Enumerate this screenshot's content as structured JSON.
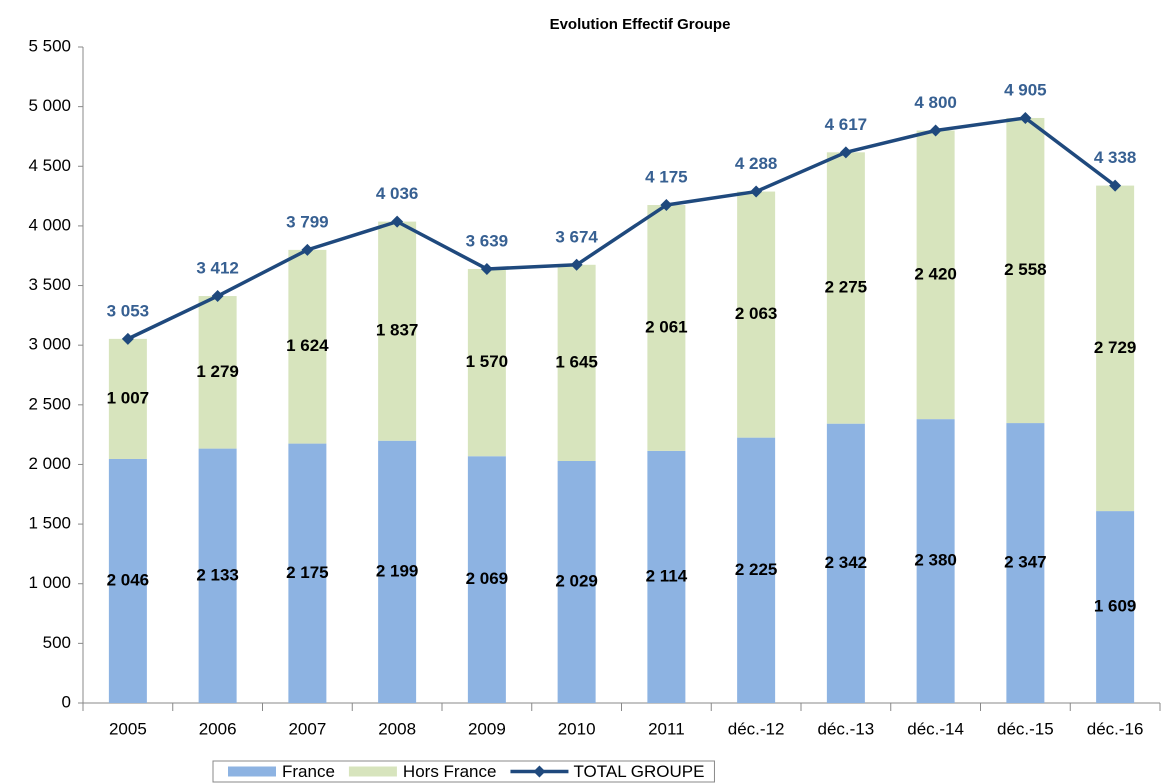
{
  "chart_data": {
    "type": "bar",
    "stacked": true,
    "title": "Evolution Effectif Groupe",
    "categories": [
      "2005",
      "2006",
      "2007",
      "2008",
      "2009",
      "2010",
      "2011",
      "déc.-12",
      "déc.-13",
      "déc.-14",
      "déc.-15",
      "déc.-16"
    ],
    "series": [
      {
        "name": "France",
        "color": "#8db3e2",
        "values": [
          2046,
          2133,
          2175,
          2199,
          2069,
          2029,
          2114,
          2225,
          2342,
          2380,
          2347,
          1609
        ],
        "value_labels": [
          "2 046",
          "2 133",
          "2 175",
          "2 199",
          "2 069",
          "2 029",
          "2 114",
          "2 225",
          "2 342",
          "2 380",
          "2 347",
          "1 609"
        ]
      },
      {
        "name": "Hors France",
        "color": "#d7e4bd",
        "values": [
          1007,
          1279,
          1624,
          1837,
          1570,
          1645,
          2061,
          2063,
          2275,
          2420,
          2558,
          2729
        ],
        "value_labels": [
          "1 007",
          "1 279",
          "1 624",
          "1 837",
          "1 570",
          "1 645",
          "2 061",
          "2 063",
          "2 275",
          "2 420",
          "2 558",
          "2 729"
        ]
      },
      {
        "name": "TOTAL GROUPE",
        "type": "line",
        "color": "#1f497d",
        "label_color": "#376092",
        "values": [
          3053,
          3412,
          3799,
          4036,
          3639,
          3674,
          4175,
          4288,
          4617,
          4800,
          4905,
          4338
        ],
        "value_labels": [
          "3 053",
          "3 412",
          "3 799",
          "4 036",
          "3 639",
          "3 674",
          "4 175",
          "4 288",
          "4 617",
          "4 800",
          "4 905",
          "4 338"
        ]
      }
    ],
    "ylim": [
      0,
      5500
    ],
    "yticks": [
      0,
      500,
      {
        "value": 1000,
        "label": "1 000"
      },
      {
        "value": 1500,
        "label": "1 500"
      },
      {
        "value": 2000,
        "label": "2 000"
      },
      {
        "value": 2500,
        "label": "2 500"
      },
      {
        "value": 3000,
        "label": "3 000"
      },
      {
        "value": 3500,
        "label": "3 500"
      },
      {
        "value": 4000,
        "label": "4 000"
      },
      {
        "value": 4500,
        "label": "4 500"
      },
      {
        "value": 5000,
        "label": "5 000"
      },
      {
        "value": 5500,
        "label": "5 500"
      }
    ],
    "grid": false,
    "legend": "bottom"
  }
}
